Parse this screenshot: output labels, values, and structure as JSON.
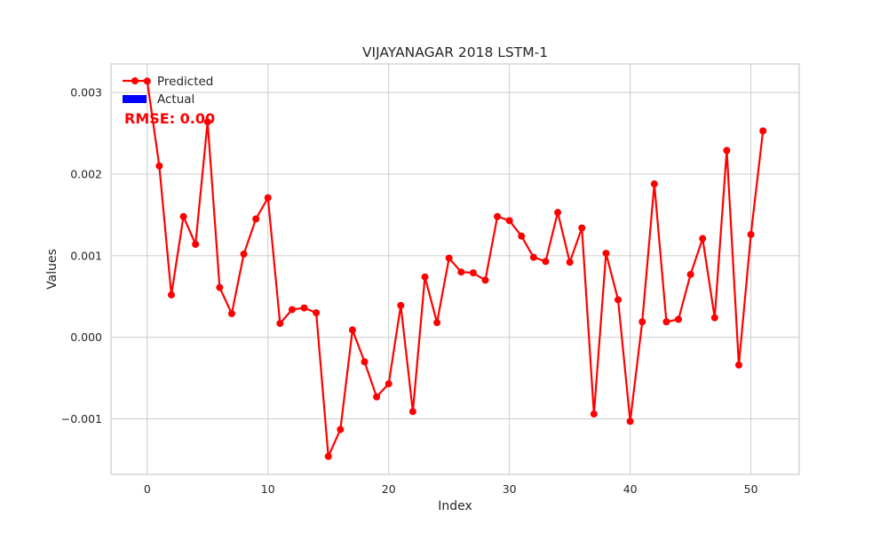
{
  "chart_data": {
    "type": "line",
    "title": "VIJAYANAGAR 2018 LSTM-1",
    "xlabel": "Index",
    "ylabel": "Values",
    "xlim": [
      -3,
      54
    ],
    "ylim": [
      -0.00168,
      0.00335
    ],
    "xticks": [
      0,
      10,
      20,
      30,
      40,
      50
    ],
    "xtick_labels": [
      "0",
      "10",
      "20",
      "30",
      "40",
      "50"
    ],
    "yticks": [
      -0.001,
      0.0,
      0.001,
      0.002,
      0.003
    ],
    "ytick_labels": [
      "−0.001",
      "0.000",
      "0.001",
      "0.002",
      "0.003"
    ],
    "grid": true,
    "legend_position": "top-left",
    "series": [
      {
        "name": "Predicted",
        "color": "#ff0000",
        "marker": "circle",
        "x": [
          0,
          1,
          2,
          3,
          4,
          5,
          6,
          7,
          8,
          9,
          10,
          11,
          12,
          13,
          14,
          15,
          16,
          17,
          18,
          19,
          20,
          21,
          22,
          23,
          24,
          25,
          26,
          27,
          28,
          29,
          30,
          31,
          32,
          33,
          34,
          35,
          36,
          37,
          38,
          39,
          40,
          41,
          42,
          43,
          44,
          45,
          46,
          47,
          48,
          49,
          50,
          51
        ],
        "y": [
          0.00314,
          0.0021,
          0.00052,
          0.00148,
          0.00114,
          0.00264,
          0.00061,
          0.00029,
          0.00102,
          0.00145,
          0.00171,
          0.00017,
          0.00034,
          0.00036,
          0.0003,
          -0.00146,
          -0.00113,
          9e-05,
          -0.0003,
          -0.00073,
          -0.00057,
          0.00039,
          -0.00091,
          0.00074,
          0.00018,
          0.00097,
          0.0008,
          0.00079,
          0.0007,
          0.00148,
          0.00143,
          0.00124,
          0.00098,
          0.00093,
          0.00153,
          0.00092,
          0.00134,
          -0.00094,
          0.00103,
          0.00046,
          -0.00103,
          0.00019,
          0.00188,
          0.00019,
          0.00022,
          0.00077,
          0.00121,
          0.00024,
          0.00229,
          -0.00034,
          0.00126,
          0.00253
        ]
      },
      {
        "name": "Actual",
        "color": "#0000ff",
        "marker": "bar",
        "x": [],
        "y": []
      }
    ],
    "annotation": {
      "text": "RMSE: 0.00",
      "color": "#ff0000"
    }
  }
}
